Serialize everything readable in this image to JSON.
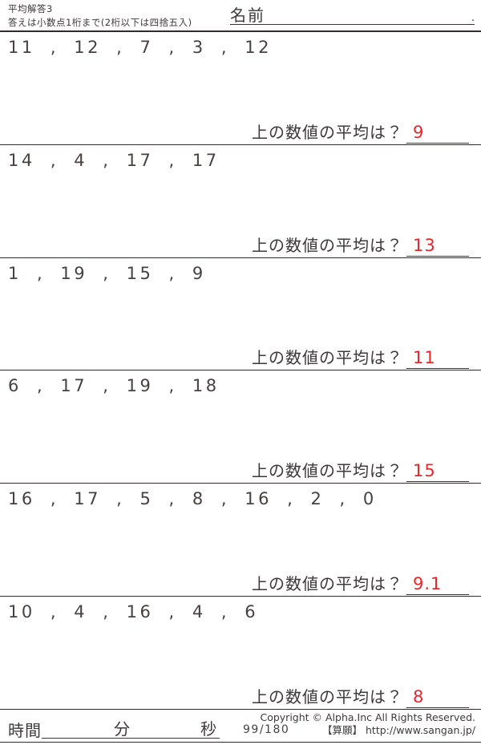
{
  "colors": {
    "ink": "#3e3a39",
    "answer_red": "#e8272d",
    "rule_line": "#2f2c2b"
  },
  "header": {
    "title": "平均解答3",
    "subtitle": "答えは小数点1桁まで(2桁以下は四捨五入)",
    "name_label": "名前",
    "name_line_suffix": "."
  },
  "question_label": "上の数値の平均は？",
  "problems": [
    {
      "numbers": [
        "11",
        "12",
        "7",
        "3",
        "12"
      ],
      "answer": "9"
    },
    {
      "numbers": [
        "14",
        "4",
        "17",
        "17"
      ],
      "answer": "13"
    },
    {
      "numbers": [
        "1",
        "19",
        "15",
        "9"
      ],
      "answer": "11"
    },
    {
      "numbers": [
        "6",
        "17",
        "19",
        "18"
      ],
      "answer": "15"
    },
    {
      "numbers": [
        "16",
        "17",
        "5",
        "8",
        "16",
        "2",
        "0"
      ],
      "answer": "9.1"
    },
    {
      "numbers": [
        "10",
        "4",
        "16",
        "4",
        "6"
      ],
      "answer": "8"
    }
  ],
  "footer": {
    "time_label": "時間",
    "minutes_label": "分",
    "seconds_label": "秒",
    "page_number": "99/180",
    "copyright_line1": "Copyright ©  Alpha.Inc All Rights Reserved.",
    "copyright_line2": "【算願】 http://www.sangan.jp/"
  }
}
